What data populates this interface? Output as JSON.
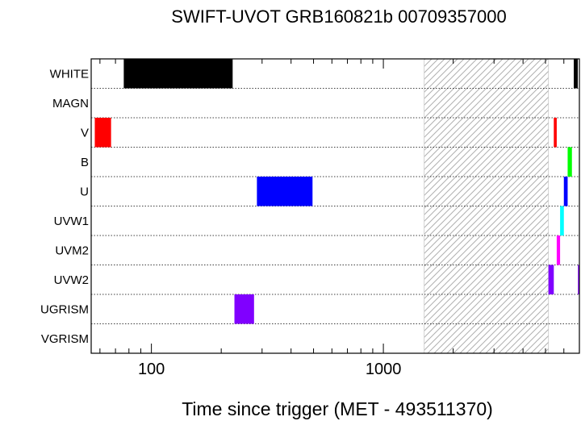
{
  "chart_data": {
    "type": "timeline",
    "title": "SWIFT-UVOT GRB160821b 00709357000",
    "xlabel": "Time since trigger (MET - 493511370)",
    "xscale": "log",
    "xlim": [
      55,
      7000
    ],
    "xticks": [
      100,
      1000
    ],
    "xtick_labels": [
      "100",
      "1000"
    ],
    "rows": [
      "WHITE",
      "MAGN",
      "V",
      "B",
      "U",
      "UVW1",
      "UVM2",
      "UVW2",
      "UGRISM",
      "VGRISM"
    ],
    "gap": {
      "start": 1500,
      "end": 5150,
      "pattern": "hatched"
    },
    "exposures": [
      {
        "filter": "WHITE",
        "start": 76,
        "end": 224,
        "color": "#000000"
      },
      {
        "filter": "WHITE",
        "start": 6620,
        "end": 6890,
        "color": "#000000"
      },
      {
        "filter": "V",
        "start": 57,
        "end": 67,
        "color": "#ff0000"
      },
      {
        "filter": "V",
        "start": 5430,
        "end": 5590,
        "color": "#ff0000"
      },
      {
        "filter": "B",
        "start": 6230,
        "end": 6500,
        "color": "#00ff00"
      },
      {
        "filter": "U",
        "start": 285,
        "end": 495,
        "color": "#0000ff"
      },
      {
        "filter": "U",
        "start": 6000,
        "end": 6230,
        "color": "#0000ff"
      },
      {
        "filter": "UVW1",
        "start": 5780,
        "end": 6000,
        "color": "#00ffff"
      },
      {
        "filter": "UVM2",
        "start": 5590,
        "end": 5780,
        "color": "#ff00ff"
      },
      {
        "filter": "UVW2",
        "start": 5150,
        "end": 5430,
        "color": "#8000ff"
      },
      {
        "filter": "UVW2",
        "start": 6900,
        "end": 7000,
        "color": "#8000ff"
      },
      {
        "filter": "UGRISM",
        "start": 228,
        "end": 277,
        "color": "#8000ff"
      }
    ]
  }
}
